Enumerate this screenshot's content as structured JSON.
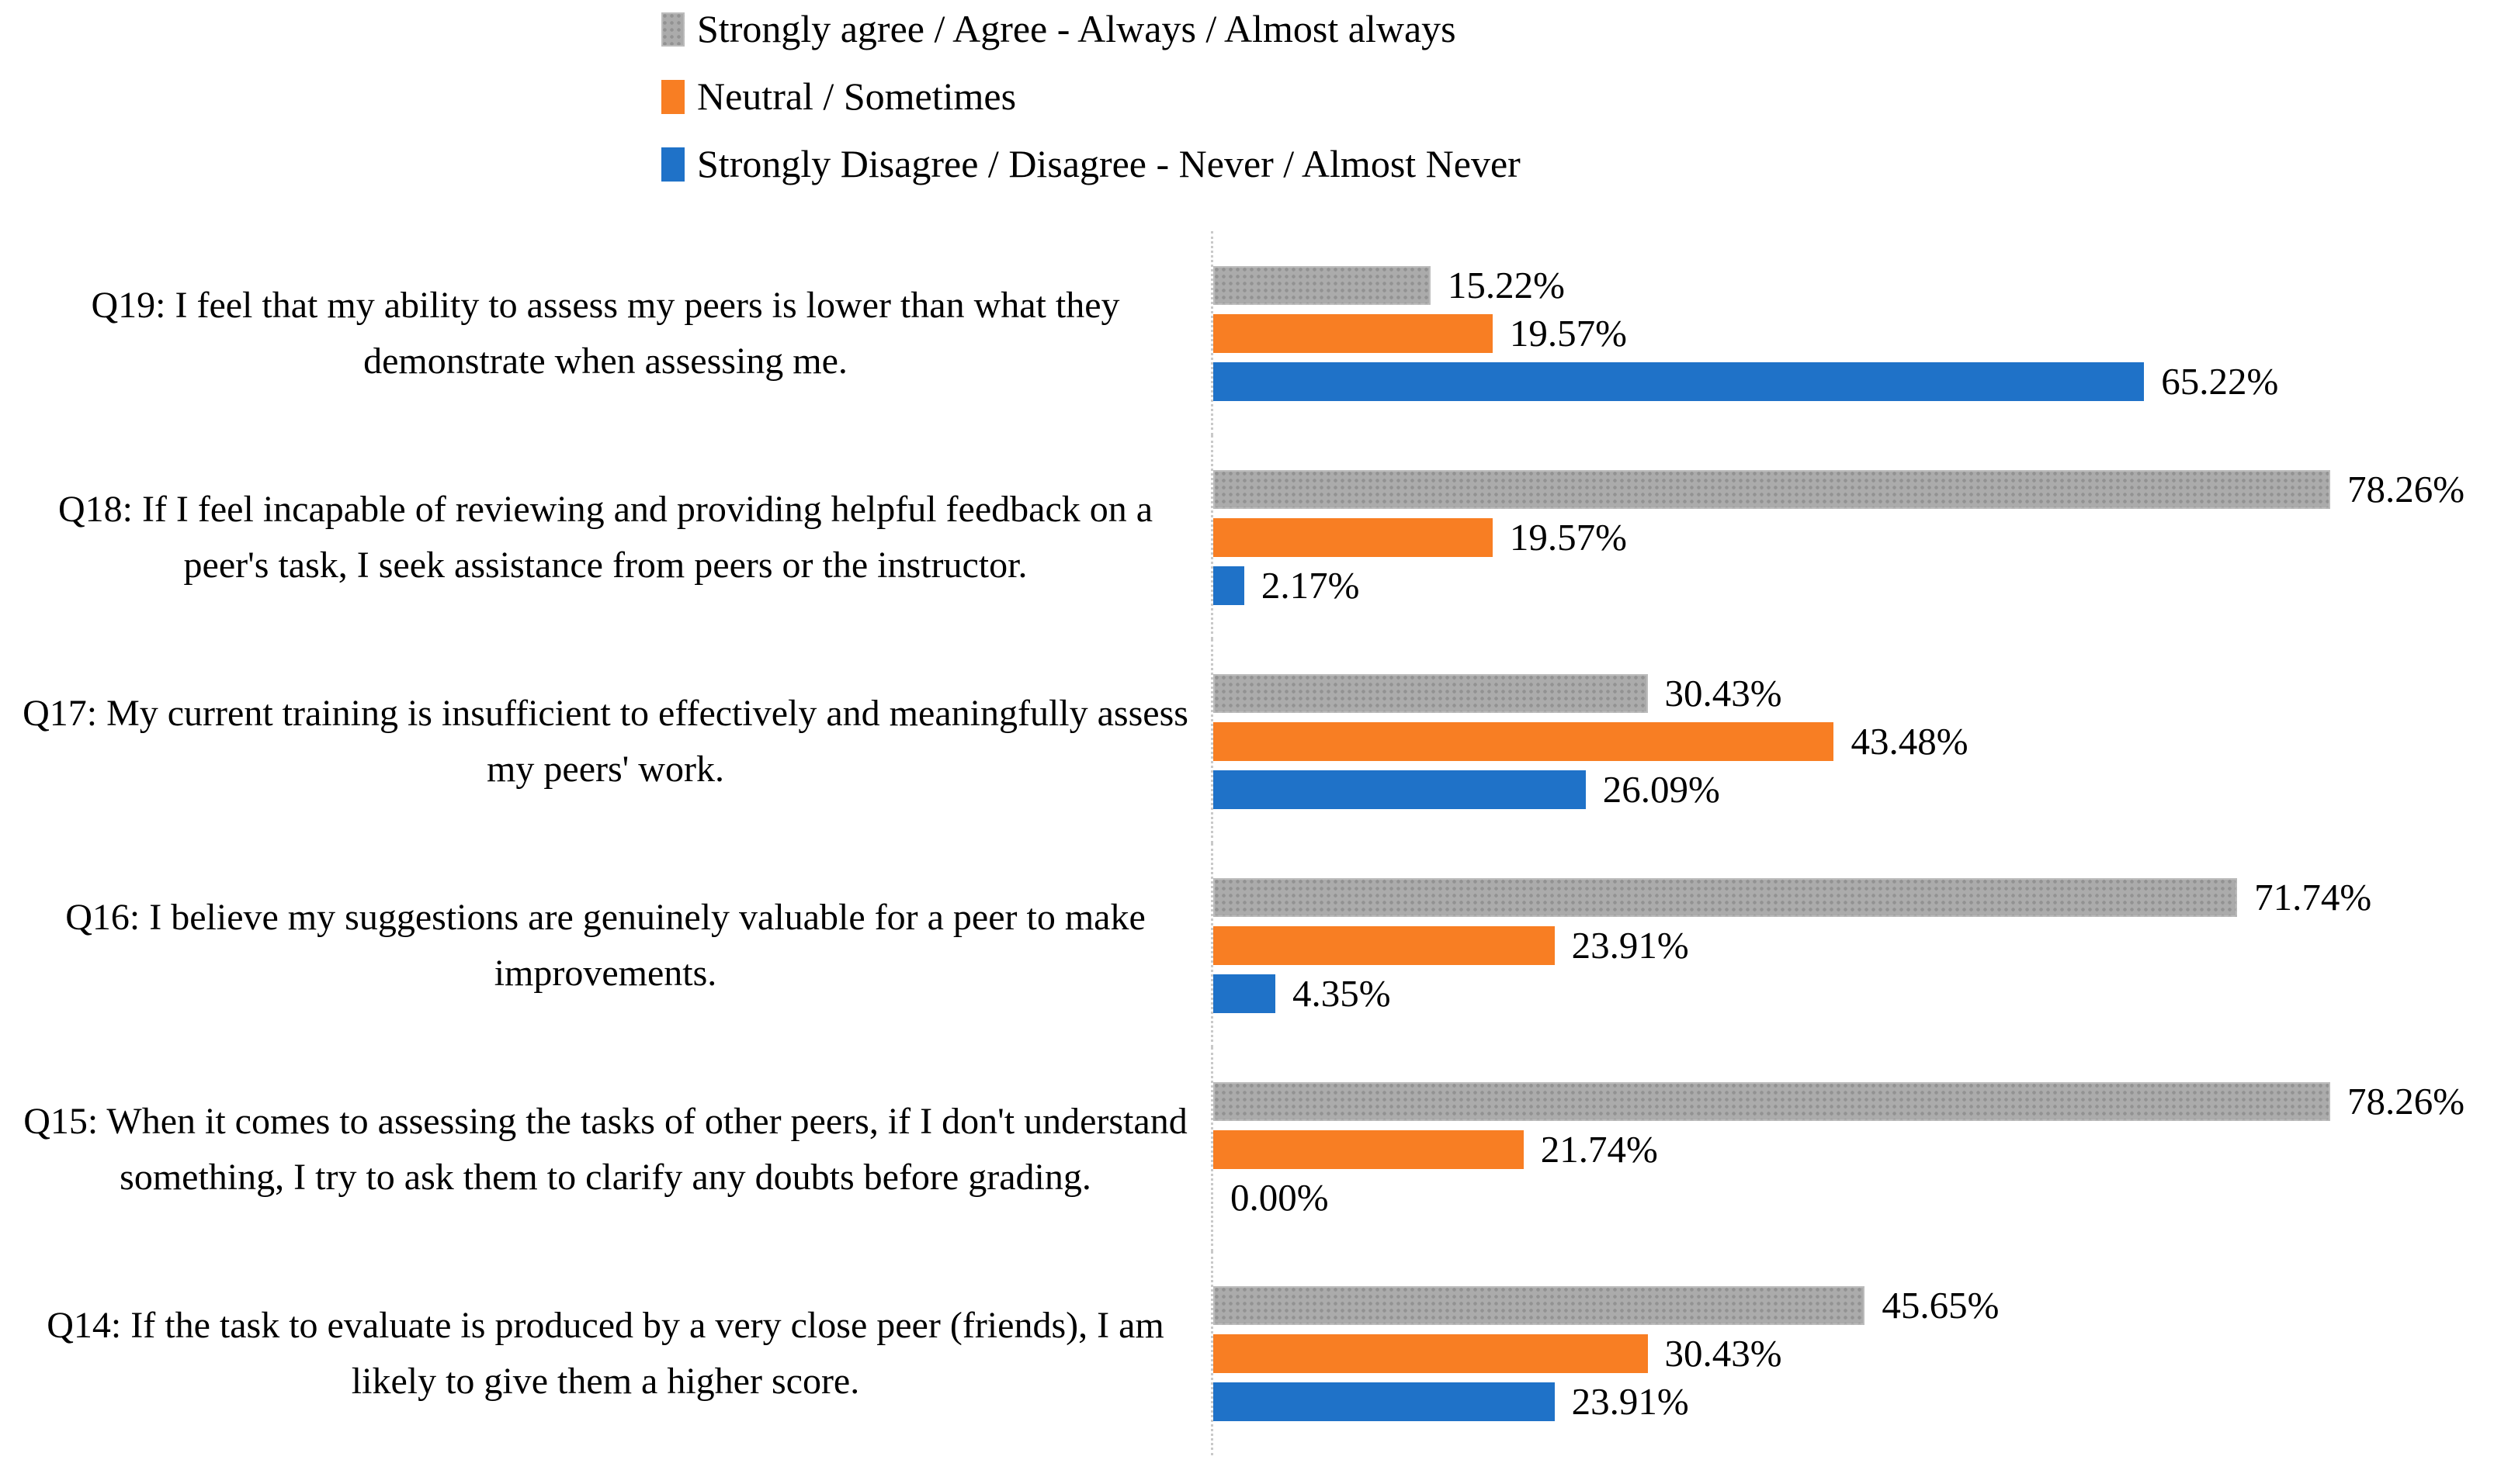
{
  "chart_data": {
    "type": "bar",
    "orientation": "horizontal",
    "title": "",
    "xlabel": "",
    "ylabel": "",
    "axis_max": 89.3,
    "axis_color": "#C9C9C9",
    "grid": false,
    "legend_position": "top",
    "legend": [
      {
        "name": "agree",
        "label": "Strongly agree / Agree - Always / Almost always",
        "color": "#ABABAB",
        "pattern": "dotted"
      },
      {
        "name": "neutral",
        "label": "Neutral / Sometimes",
        "color": "#F87E23"
      },
      {
        "name": "disagree",
        "label": "Strongly Disagree / Disagree - Never / Almost Never",
        "color": "#1F72C8"
      }
    ],
    "rows": [
      {
        "question": "Q19: I feel that my ability to assess my peers is lower than what they demonstrate when assessing me.",
        "bars": [
          {
            "series": "agree",
            "value": 15.22,
            "label": "15.22%"
          },
          {
            "series": "neutral",
            "value": 19.57,
            "label": "19.57%"
          },
          {
            "series": "disagree",
            "value": 65.22,
            "label": "65.22%"
          }
        ]
      },
      {
        "question": "Q18: If I feel incapable of reviewing and providing helpful feedback on a peer's task, I seek assistance from peers or the instructor.",
        "bars": [
          {
            "series": "agree",
            "value": 78.26,
            "label": "78.26%"
          },
          {
            "series": "neutral",
            "value": 19.57,
            "label": "19.57%"
          },
          {
            "series": "disagree",
            "value": 2.17,
            "label": "2.17%"
          }
        ]
      },
      {
        "question": "Q17: My current training is insufficient to effectively and meaningfully assess my peers' work.",
        "bars": [
          {
            "series": "agree",
            "value": 30.43,
            "label": "30.43%"
          },
          {
            "series": "neutral",
            "value": 43.48,
            "label": "43.48%"
          },
          {
            "series": "disagree",
            "value": 26.09,
            "label": "26.09%"
          }
        ]
      },
      {
        "question": "Q16: I believe my suggestions are genuinely valuable for a peer to make improvements.",
        "bars": [
          {
            "series": "agree",
            "value": 71.74,
            "label": "71.74%"
          },
          {
            "series": "neutral",
            "value": 23.91,
            "label": "23.91%"
          },
          {
            "series": "disagree",
            "value": 4.35,
            "label": "4.35%"
          }
        ]
      },
      {
        "question": "Q15: When it comes to assessing the tasks of other peers, if I don't understand something, I try to ask them to clarify any doubts before grading.",
        "bars": [
          {
            "series": "agree",
            "value": 78.26,
            "label": "78.26%"
          },
          {
            "series": "neutral",
            "value": 21.74,
            "label": "21.74%"
          },
          {
            "series": "disagree",
            "value": 0.0,
            "label": "0.00%"
          }
        ]
      },
      {
        "question": "Q14: If the task to evaluate is produced by a very close peer (friends), I am likely to give them a higher score.",
        "bars": [
          {
            "series": "agree",
            "value": 45.65,
            "label": "45.65%"
          },
          {
            "series": "neutral",
            "value": 30.43,
            "label": "30.43%"
          },
          {
            "series": "disagree",
            "value": 23.91,
            "label": "23.91%"
          }
        ]
      }
    ]
  }
}
